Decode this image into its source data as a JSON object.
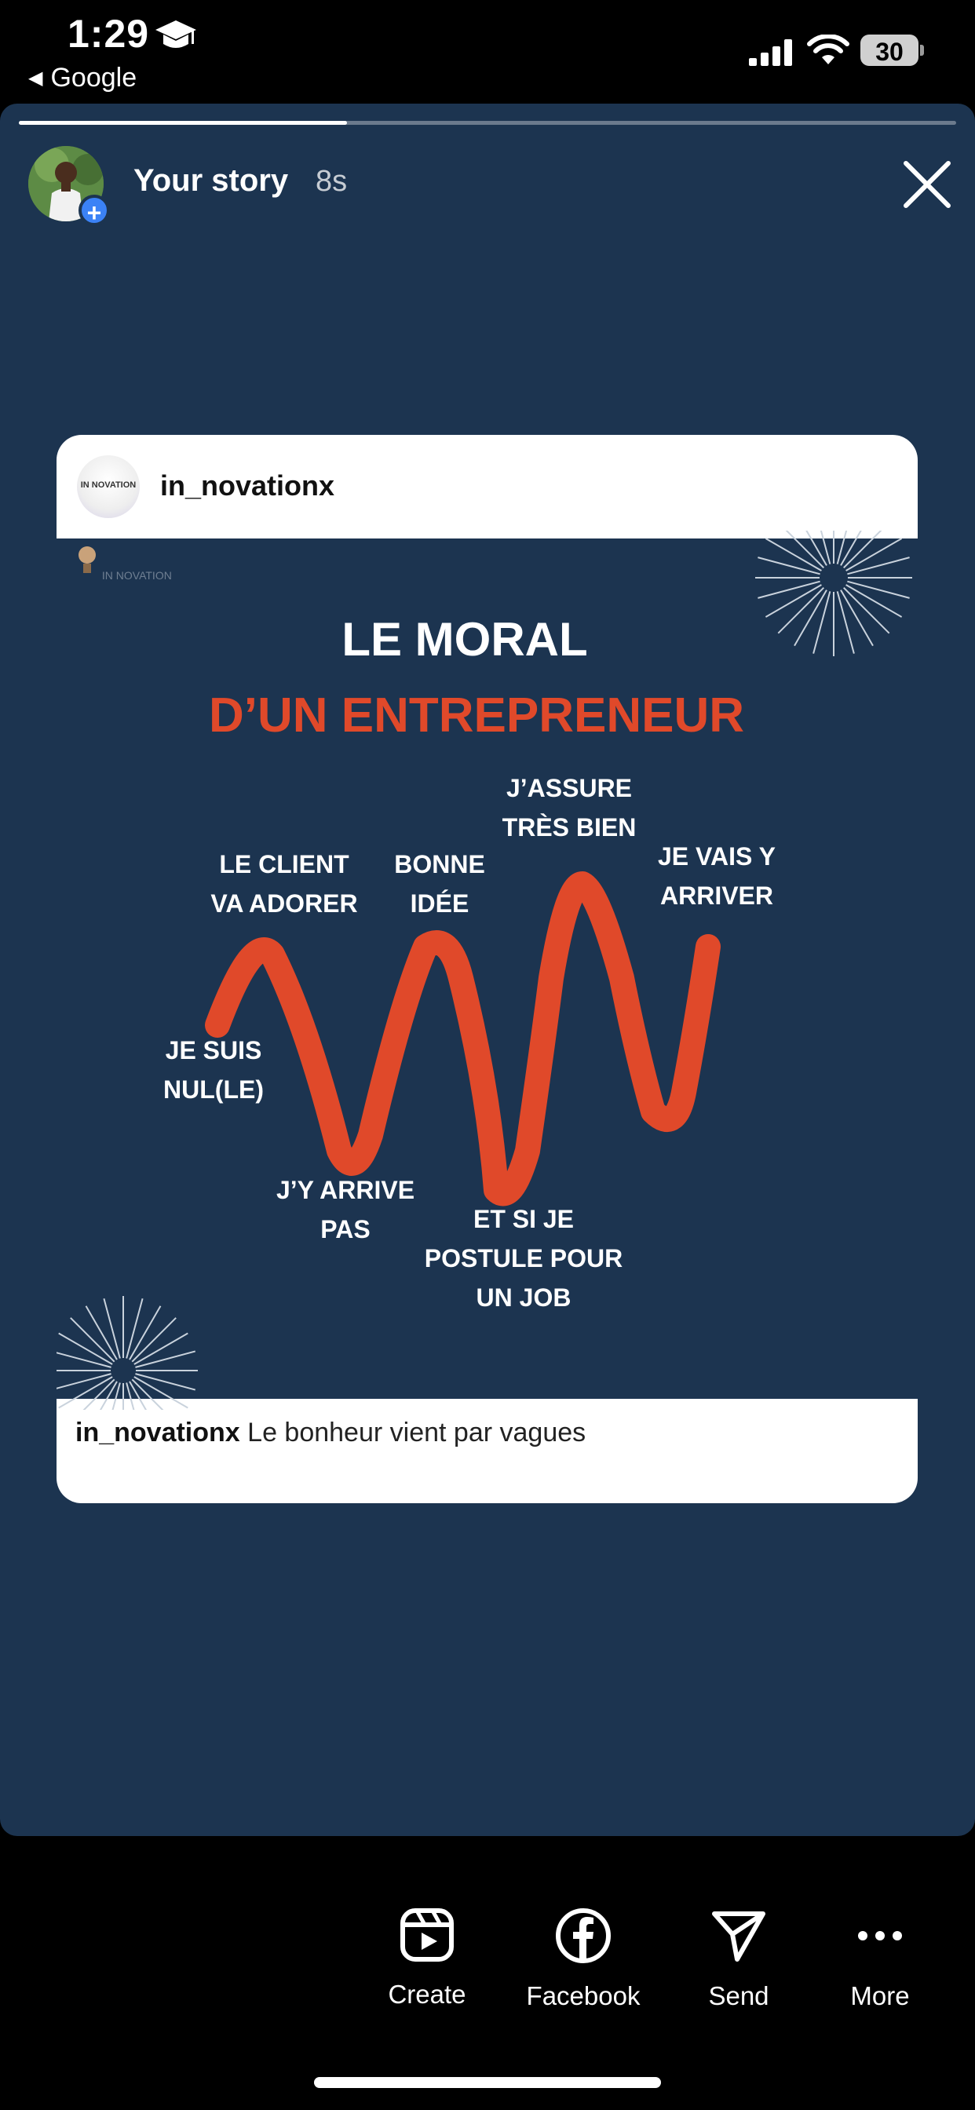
{
  "status_bar": {
    "time": "1:29",
    "back_app": "Google",
    "battery": "30"
  },
  "story": {
    "progress": 0.35,
    "user": "Your story",
    "time_ago": "8s"
  },
  "post": {
    "username": "in_novationx",
    "avatar_text": "IN NOVATION",
    "logo_text": "IN NOVATION",
    "image": {
      "title_line1": "LE MORAL",
      "title_line2": "D’UN ENTREPRENEUR",
      "labels": {
        "je_suis_nul": "JE SUIS\nNUL(LE)",
        "le_client": "LE CLIENT\nVA ADORER",
        "jy_arrive_pas": "J’Y ARRIVE\nPAS",
        "bonne_idee": "BONNE\nIDÉE",
        "et_si_je_postule": "ET SI JE\nPOSTULE POUR\nUN JOB",
        "jassure": "J’ASSURE\nTRÈS BIEN",
        "je_vais_y_arriver": "JE VAIS Y\nARRIVER"
      }
    },
    "caption_user": "in_novationx",
    "caption_text": "Le bonheur vient par vagues"
  },
  "actions": [
    {
      "label": "Create",
      "icon": "reels-icon"
    },
    {
      "label": "Facebook",
      "icon": "facebook-icon"
    },
    {
      "label": "Send",
      "icon": "send-icon"
    },
    {
      "label": "More",
      "icon": "more-icon"
    }
  ],
  "colors": {
    "story_bg": "#1c3450",
    "accent": "#e0492a"
  }
}
